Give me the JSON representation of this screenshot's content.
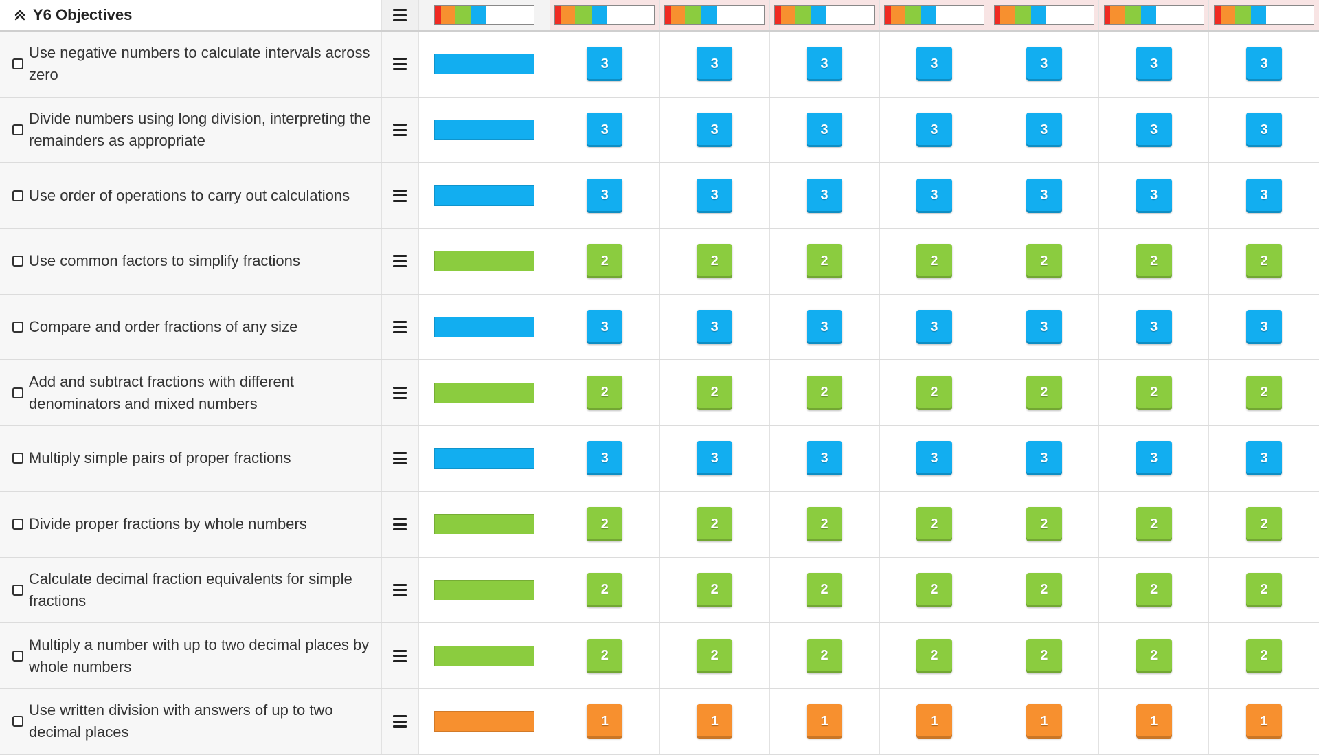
{
  "section": {
    "title": "Y6 Objectives",
    "collapse_icon": "chevron-up-icon"
  },
  "colors": {
    "1": "#f7902f",
    "2": "#8bcc3f",
    "3": "#12aef0",
    "red": "#f02a22",
    "empty": "#ffffff"
  },
  "header_distribution": [
    {
      "color": "#f02a22",
      "fraction": 0.06
    },
    {
      "color": "#f7902f",
      "fraction": 0.14
    },
    {
      "color": "#8bcc3f",
      "fraction": 0.17
    },
    {
      "color": "#12aef0",
      "fraction": 0.15
    },
    {
      "color": "#ffffff",
      "fraction": 0.48
    }
  ],
  "pupil_count": 7,
  "objectives": [
    {
      "label": "Use negative numbers to calculate intervals across zero",
      "level": 3,
      "marks": [
        "3",
        "3",
        "3",
        "3",
        "3",
        "3",
        "3"
      ]
    },
    {
      "label": "Divide numbers using long division, interpreting the remainders as appropriate",
      "level": 3,
      "marks": [
        "3",
        "3",
        "3",
        "3",
        "3",
        "3",
        "3"
      ]
    },
    {
      "label": "Use order of operations to carry out calculations",
      "level": 3,
      "marks": [
        "3",
        "3",
        "3",
        "3",
        "3",
        "3",
        "3"
      ]
    },
    {
      "label": "Use common factors to simplify fractions",
      "level": 2,
      "marks": [
        "2",
        "2",
        "2",
        "2",
        "2",
        "2",
        "2"
      ]
    },
    {
      "label": "Compare and order fractions of any size",
      "level": 3,
      "marks": [
        "3",
        "3",
        "3",
        "3",
        "3",
        "3",
        "3"
      ]
    },
    {
      "label": "Add and subtract fractions with different denominators and mixed numbers",
      "level": 2,
      "marks": [
        "2",
        "2",
        "2",
        "2",
        "2",
        "2",
        "2"
      ]
    },
    {
      "label": "Multiply simple pairs of proper fractions",
      "level": 3,
      "marks": [
        "3",
        "3",
        "3",
        "3",
        "3",
        "3",
        "3"
      ]
    },
    {
      "label": "Divide proper fractions by whole numbers",
      "level": 2,
      "marks": [
        "2",
        "2",
        "2",
        "2",
        "2",
        "2",
        "2"
      ]
    },
    {
      "label": "Calculate decimal fraction equivalents for simple fractions",
      "level": 2,
      "marks": [
        "2",
        "2",
        "2",
        "2",
        "2",
        "2",
        "2"
      ]
    },
    {
      "label": "Multiply a number with up to two decimal places by whole numbers",
      "level": 2,
      "marks": [
        "2",
        "2",
        "2",
        "2",
        "2",
        "2",
        "2"
      ]
    },
    {
      "label": "Use written division with answers of up to two decimal places",
      "level": 1,
      "marks": [
        "1",
        "1",
        "1",
        "1",
        "1",
        "1",
        "1"
      ]
    }
  ]
}
